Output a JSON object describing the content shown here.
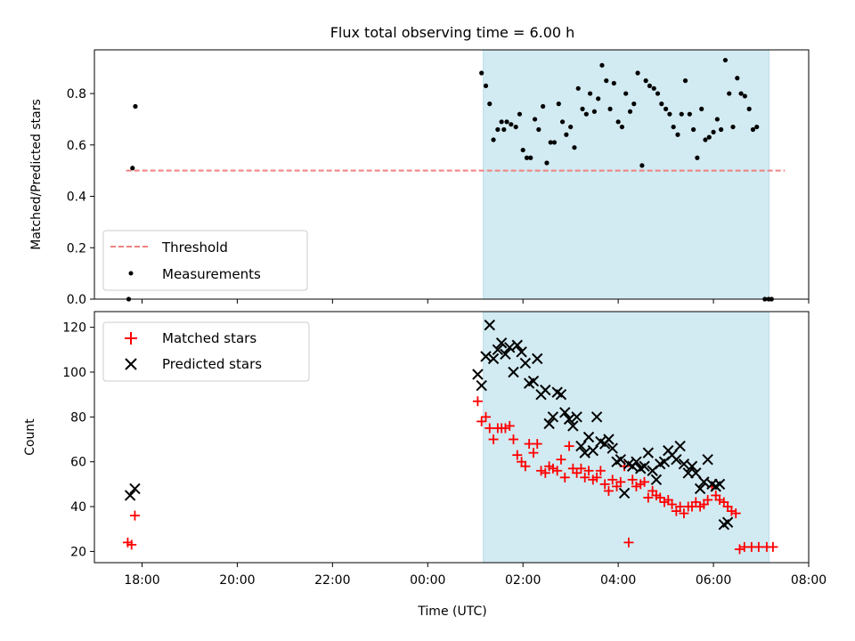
{
  "chart_data": [
    {
      "type": "scatter",
      "title": "Flux total observing time = 6.00 h",
      "xlabel": "",
      "ylabel": "Matched/Predicted stars",
      "ylim": [
        0,
        0.97
      ],
      "yticks": [
        0.0,
        0.2,
        0.4,
        0.6,
        0.8
      ],
      "ytick_labels": [
        "0.0",
        "0.2",
        "0.4",
        "0.6",
        "0.8"
      ],
      "x_unit": "hours since 00:00 UTC (negative = previous day)",
      "xlim": [
        -7.0,
        8.0
      ],
      "shaded_span": {
        "from": "01:10",
        "to": "07:10",
        "color": "#add8e6"
      },
      "legend": {
        "placement": "lower-left",
        "entries": [
          "Threshold",
          "Measurements"
        ]
      },
      "threshold": {
        "name": "Threshold",
        "value": 0.5,
        "x_range": [
          "17:40",
          "07:30"
        ],
        "color": "#f08080",
        "style": "dashed"
      },
      "series": [
        {
          "name": "Measurements",
          "color": "#000000",
          "marker": "dot",
          "points": [
            [
              -6.28,
              0.0
            ],
            [
              -6.2,
              0.51
            ],
            [
              -6.14,
              0.75
            ],
            [
              1.13,
              0.88
            ],
            [
              1.22,
              0.83
            ],
            [
              1.3,
              0.76
            ],
            [
              1.38,
              0.62
            ],
            [
              1.47,
              0.66
            ],
            [
              1.55,
              0.69
            ],
            [
              1.6,
              0.66
            ],
            [
              1.66,
              0.69
            ],
            [
              1.75,
              0.68
            ],
            [
              1.85,
              0.67
            ],
            [
              1.93,
              0.72
            ],
            [
              2.0,
              0.58
            ],
            [
              2.08,
              0.55
            ],
            [
              2.16,
              0.55
            ],
            [
              2.25,
              0.7
            ],
            [
              2.33,
              0.66
            ],
            [
              2.42,
              0.75
            ],
            [
              2.5,
              0.53
            ],
            [
              2.58,
              0.61
            ],
            [
              2.66,
              0.61
            ],
            [
              2.75,
              0.76
            ],
            [
              2.83,
              0.69
            ],
            [
              2.91,
              0.64
            ],
            [
              3.0,
              0.67
            ],
            [
              3.08,
              0.59
            ],
            [
              3.16,
              0.82
            ],
            [
              3.25,
              0.74
            ],
            [
              3.33,
              0.72
            ],
            [
              3.41,
              0.8
            ],
            [
              3.5,
              0.73
            ],
            [
              3.58,
              0.78
            ],
            [
              3.66,
              0.91
            ],
            [
              3.75,
              0.85
            ],
            [
              3.83,
              0.74
            ],
            [
              3.91,
              0.84
            ],
            [
              4.0,
              0.69
            ],
            [
              4.08,
              0.67
            ],
            [
              4.16,
              0.8
            ],
            [
              4.25,
              0.73
            ],
            [
              4.33,
              0.76
            ],
            [
              4.41,
              0.88
            ],
            [
              4.5,
              0.52
            ],
            [
              4.58,
              0.85
            ],
            [
              4.66,
              0.83
            ],
            [
              4.75,
              0.82
            ],
            [
              4.83,
              0.8
            ],
            [
              4.91,
              0.76
            ],
            [
              5.0,
              0.74
            ],
            [
              5.08,
              0.72
            ],
            [
              5.16,
              0.67
            ],
            [
              5.25,
              0.64
            ],
            [
              5.33,
              0.72
            ],
            [
              5.41,
              0.85
            ],
            [
              5.5,
              0.72
            ],
            [
              5.58,
              0.66
            ],
            [
              5.66,
              0.55
            ],
            [
              5.75,
              0.74
            ],
            [
              5.83,
              0.62
            ],
            [
              5.91,
              0.63
            ],
            [
              6.0,
              0.65
            ],
            [
              6.08,
              0.7
            ],
            [
              6.16,
              0.66
            ],
            [
              6.25,
              0.93
            ],
            [
              6.33,
              0.8
            ],
            [
              6.41,
              0.67
            ],
            [
              6.5,
              0.86
            ],
            [
              6.58,
              0.8
            ],
            [
              6.66,
              0.79
            ],
            [
              6.75,
              0.74
            ],
            [
              6.83,
              0.66
            ],
            [
              6.91,
              0.67
            ],
            [
              7.08,
              0.0
            ],
            [
              7.16,
              0.0
            ],
            [
              7.22,
              0.0
            ]
          ]
        }
      ]
    },
    {
      "type": "scatter",
      "title": "",
      "xlabel": "Time (UTC)",
      "ylabel": "Count",
      "ylim": [
        15,
        127
      ],
      "yticks": [
        20,
        40,
        60,
        80,
        100,
        120
      ],
      "ytick_labels": [
        "20",
        "40",
        "60",
        "80",
        "100",
        "120"
      ],
      "x_unit": "hours since 00:00 UTC (negative = previous day)",
      "xlim": [
        -7.0,
        8.0
      ],
      "xticks": [
        -6,
        -4,
        -2,
        0,
        2,
        4,
        6,
        8
      ],
      "xtick_labels": [
        "18:00",
        "20:00",
        "22:00",
        "00:00",
        "02:00",
        "04:00",
        "06:00",
        "08:00"
      ],
      "shaded_span": {
        "from": "01:10",
        "to": "07:10",
        "color": "#add8e6"
      },
      "legend": {
        "placement": "upper-left",
        "entries": [
          "Matched stars",
          "Predicted stars"
        ]
      },
      "series": [
        {
          "name": "Matched stars",
          "color": "#ff0000",
          "marker": "plus",
          "points": [
            [
              -6.3,
              24
            ],
            [
              -6.22,
              23
            ],
            [
              -6.15,
              36
            ],
            [
              1.05,
              87
            ],
            [
              1.13,
              78
            ],
            [
              1.22,
              80
            ],
            [
              1.3,
              75
            ],
            [
              1.38,
              70
            ],
            [
              1.47,
              75
            ],
            [
              1.55,
              75
            ],
            [
              1.63,
              75
            ],
            [
              1.72,
              76
            ],
            [
              1.8,
              70
            ],
            [
              1.88,
              63
            ],
            [
              1.97,
              60
            ],
            [
              2.05,
              58
            ],
            [
              2.13,
              68
            ],
            [
              2.22,
              64
            ],
            [
              2.3,
              68
            ],
            [
              2.38,
              56
            ],
            [
              2.47,
              55
            ],
            [
              2.55,
              58
            ],
            [
              2.63,
              57
            ],
            [
              2.72,
              56
            ],
            [
              2.8,
              61
            ],
            [
              2.88,
              53
            ],
            [
              2.97,
              67
            ],
            [
              3.05,
              57
            ],
            [
              3.13,
              55
            ],
            [
              3.22,
              57
            ],
            [
              3.3,
              53
            ],
            [
              3.38,
              56
            ],
            [
              3.47,
              52
            ],
            [
              3.55,
              53
            ],
            [
              3.63,
              56
            ],
            [
              3.72,
              50
            ],
            [
              3.8,
              47
            ],
            [
              3.88,
              52
            ],
            [
              3.97,
              49
            ],
            [
              4.05,
              51
            ],
            [
              4.13,
              58
            ],
            [
              4.22,
              24
            ],
            [
              4.3,
              52
            ],
            [
              4.38,
              49
            ],
            [
              4.47,
              50
            ],
            [
              4.55,
              51
            ],
            [
              4.63,
              44
            ],
            [
              4.72,
              47
            ],
            [
              4.8,
              45
            ],
            [
              4.88,
              44
            ],
            [
              4.97,
              42
            ],
            [
              5.05,
              43
            ],
            [
              5.13,
              41
            ],
            [
              5.22,
              38
            ],
            [
              5.3,
              40
            ],
            [
              5.38,
              37
            ],
            [
              5.47,
              40
            ],
            [
              5.55,
              40
            ],
            [
              5.63,
              42
            ],
            [
              5.72,
              40
            ],
            [
              5.8,
              41
            ],
            [
              5.88,
              43
            ],
            [
              5.97,
              49
            ],
            [
              6.05,
              45
            ],
            [
              6.13,
              43
            ],
            [
              6.22,
              42
            ],
            [
              6.3,
              40
            ],
            [
              6.38,
              38
            ],
            [
              6.47,
              37
            ],
            [
              6.55,
              21
            ],
            [
              6.65,
              22
            ],
            [
              6.8,
              22
            ],
            [
              6.95,
              22
            ],
            [
              7.12,
              22
            ],
            [
              7.25,
              22
            ]
          ]
        },
        {
          "name": "Predicted stars",
          "color": "#000000",
          "marker": "x",
          "points": [
            [
              -6.25,
              45
            ],
            [
              -6.15,
              48
            ],
            [
              1.05,
              99
            ],
            [
              1.13,
              94
            ],
            [
              1.22,
              107
            ],
            [
              1.3,
              121
            ],
            [
              1.38,
              106
            ],
            [
              1.47,
              110
            ],
            [
              1.55,
              113
            ],
            [
              1.63,
              108
            ],
            [
              1.72,
              111
            ],
            [
              1.8,
              100
            ],
            [
              1.88,
              112
            ],
            [
              1.97,
              109
            ],
            [
              2.05,
              104
            ],
            [
              2.13,
              95
            ],
            [
              2.22,
              96
            ],
            [
              2.3,
              106
            ],
            [
              2.38,
              90
            ],
            [
              2.47,
              92
            ],
            [
              2.55,
              77
            ],
            [
              2.63,
              80
            ],
            [
              2.72,
              91
            ],
            [
              2.8,
              90
            ],
            [
              2.88,
              82
            ],
            [
              2.97,
              79
            ],
            [
              3.05,
              76
            ],
            [
              3.13,
              80
            ],
            [
              3.22,
              67
            ],
            [
              3.3,
              64
            ],
            [
              3.38,
              71
            ],
            [
              3.47,
              65
            ],
            [
              3.55,
              80
            ],
            [
              3.63,
              69
            ],
            [
              3.72,
              68
            ],
            [
              3.8,
              70
            ],
            [
              3.88,
              66
            ],
            [
              3.97,
              60
            ],
            [
              4.05,
              61
            ],
            [
              4.13,
              46
            ],
            [
              4.22,
              59
            ],
            [
              4.3,
              58
            ],
            [
              4.38,
              60
            ],
            [
              4.47,
              57
            ],
            [
              4.55,
              58
            ],
            [
              4.63,
              64
            ],
            [
              4.72,
              56
            ],
            [
              4.8,
              52
            ],
            [
              4.88,
              59
            ],
            [
              4.97,
              60
            ],
            [
              5.05,
              65
            ],
            [
              5.13,
              63
            ],
            [
              5.22,
              61
            ],
            [
              5.3,
              67
            ],
            [
              5.38,
              59
            ],
            [
              5.47,
              55
            ],
            [
              5.55,
              58
            ],
            [
              5.63,
              55
            ],
            [
              5.72,
              48
            ],
            [
              5.8,
              51
            ],
            [
              5.88,
              61
            ],
            [
              5.97,
              50
            ],
            [
              6.05,
              49
            ],
            [
              6.13,
              50
            ],
            [
              6.22,
              32
            ],
            [
              6.3,
              33
            ]
          ]
        }
      ]
    }
  ]
}
